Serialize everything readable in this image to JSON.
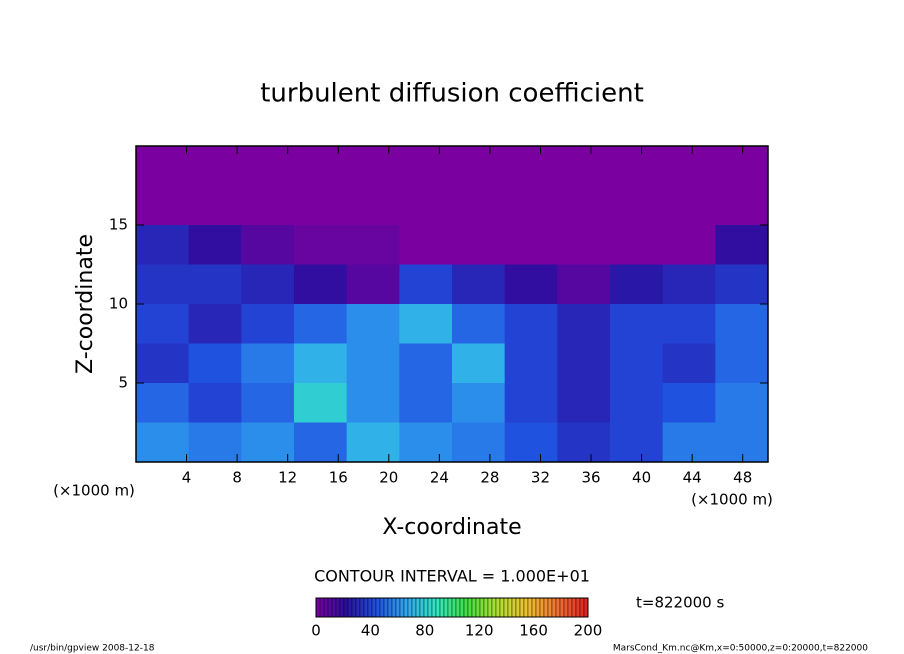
{
  "chart_data": {
    "type": "heatmap",
    "title": "turbulent diffusion coefficient",
    "xlabel": "X-coordinate",
    "ylabel": "Z-coordinate",
    "x_unit": "(×1000 m)",
    "x_unit_right": "(×1000 m)",
    "xlim": [
      0,
      50
    ],
    "ylim": [
      0,
      20
    ],
    "xticks": [
      4,
      8,
      12,
      16,
      20,
      24,
      28,
      32,
      36,
      40,
      44,
      48
    ],
    "yticks": [
      5,
      10,
      15
    ],
    "z": [
      [
        0,
        0,
        0,
        0,
        0,
        0,
        0,
        0,
        0,
        0,
        0,
        0
      ],
      [
        0,
        0,
        0,
        0,
        0,
        0,
        0,
        0,
        0,
        0,
        0,
        0
      ],
      [
        30,
        20,
        10,
        5,
        5,
        0,
        0,
        0,
        0,
        0,
        0,
        20
      ],
      [
        35,
        35,
        30,
        20,
        10,
        40,
        30,
        20,
        10,
        25,
        30,
        35
      ],
      [
        40,
        30,
        40,
        50,
        60,
        70,
        50,
        40,
        30,
        40,
        40,
        50
      ],
      [
        35,
        45,
        55,
        70,
        60,
        50,
        70,
        40,
        30,
        40,
        35,
        50
      ],
      [
        50,
        40,
        50,
        80,
        60,
        50,
        60,
        40,
        30,
        40,
        45,
        55
      ],
      [
        60,
        55,
        60,
        50,
        70,
        60,
        55,
        45,
        35,
        40,
        55,
        55
      ]
    ],
    "colormap": [
      "#7a00a0",
      "#2a10a0",
      "#2050e0",
      "#30a8f0",
      "#30e8c0",
      "#40e040",
      "#b0e030",
      "#f0c030",
      "#f07030",
      "#e02020"
    ],
    "clim": [
      0,
      200
    ],
    "cticks": [
      0,
      40,
      80,
      120,
      160,
      200
    ],
    "contour_note": "CONTOUR INTERVAL = 1.000E+01",
    "time_note": "t=822000 s",
    "footer_left": "/usr/bin/gpview   2008-12-18",
    "footer_right": "MarsCond_Km.nc@Km,x=0:50000,z=0:20000,t=822000"
  }
}
